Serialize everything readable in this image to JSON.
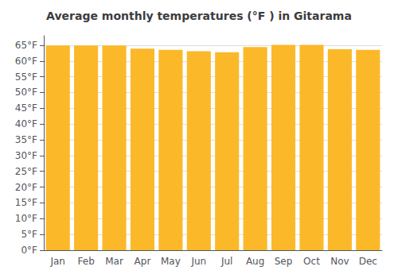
{
  "chart_data": {
    "type": "bar",
    "title": "Average monthly temperatures (°F ) in Gitarama",
    "categories": [
      "Jan",
      "Feb",
      "Mar",
      "Apr",
      "May",
      "Jun",
      "Jul",
      "Aug",
      "Sep",
      "Oct",
      "Nov",
      "Dec"
    ],
    "values": [
      64.9,
      64.9,
      64.9,
      63.9,
      63.5,
      63.1,
      62.8,
      64.4,
      65.1,
      65.1,
      63.7,
      63.5
    ],
    "color": "#FBB829",
    "ylim": [
      0,
      68
    ],
    "yticks": [
      {
        "value": 0,
        "label": "0°F"
      },
      {
        "value": 5,
        "label": "5°F"
      },
      {
        "value": 10,
        "label": "10°F"
      },
      {
        "value": 15,
        "label": "15°F"
      },
      {
        "value": 20,
        "label": "20°F"
      },
      {
        "value": 25,
        "label": "25°F"
      },
      {
        "value": 30,
        "label": "30°F"
      },
      {
        "value": 35,
        "label": "35°F"
      },
      {
        "value": 40,
        "label": "40°F"
      },
      {
        "value": 45,
        "label": "45°F"
      },
      {
        "value": 50,
        "label": "50°F"
      },
      {
        "value": 55,
        "label": "55°F"
      },
      {
        "value": 60,
        "label": "60°F"
      },
      {
        "value": 65,
        "label": "65°F"
      }
    ],
    "grid": true
  }
}
